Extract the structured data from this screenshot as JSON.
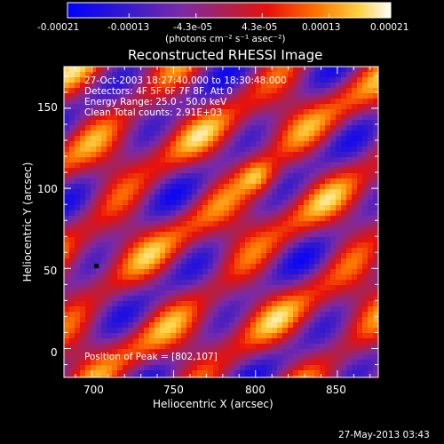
{
  "colorbar": {
    "tick_labels": [
      "-0.00021",
      "-0.00013",
      "-4.3e-05",
      "4.3e-05",
      "0.00013",
      "0.00021"
    ],
    "unit_label": "(photons cm⁻² s⁻¹ asec⁻²)",
    "range": [
      -0.00021,
      0.00021
    ]
  },
  "chart_data": {
    "type": "heatmap",
    "title": "Reconstructed RHESSI Image",
    "xlabel": "Heliocentric X (arcsec)",
    "ylabel": "Heliocentric Y (arcsec)",
    "xlim": [
      683,
      875
    ],
    "ylim": [
      -18,
      176
    ],
    "xticks": [
      700,
      750,
      800,
      850
    ],
    "yticks": [
      0,
      50,
      100,
      150
    ],
    "annotations": [
      "27-Oct-2003 18:27:40.000 to 18:30:48.000",
      "Detectors: 4F 5F 6F 7F 8F, Att 0",
      "Energy Range: 25.0 - 50.0 keV",
      "Clean     Total counts: 2.91E+03"
    ],
    "peak_label": "Position of Peak = [802,107]",
    "peak_position": [
      802,
      107
    ],
    "colormap": "red-temperature (blue-purple-red-orange-yellow-white)",
    "grid": false
  },
  "footer": {
    "timestamp": "27-May-2013 03:43"
  }
}
